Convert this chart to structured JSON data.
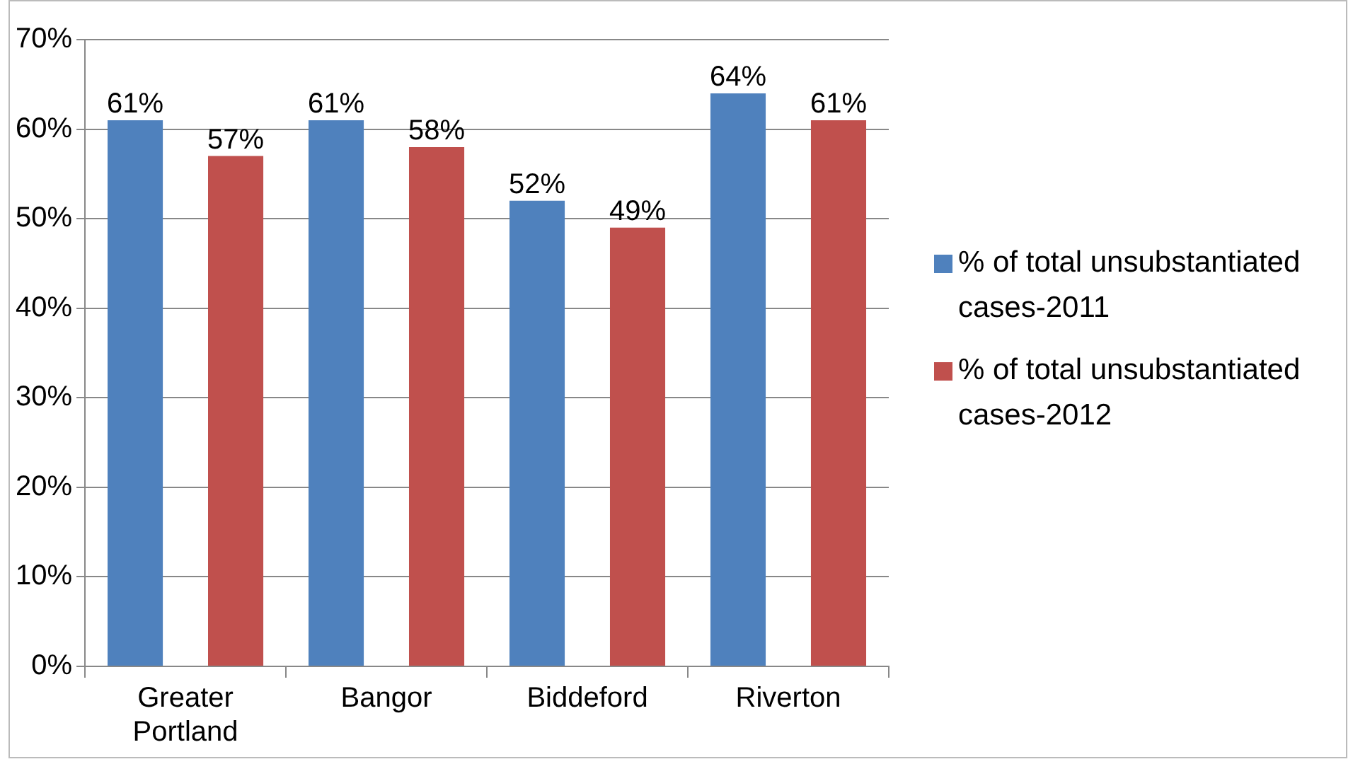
{
  "chart_data": {
    "type": "bar",
    "categories": [
      "Greater Portland",
      "Bangor",
      "Biddeford",
      "Riverton"
    ],
    "series": [
      {
        "name": "% of total unsubstantiated cases-2011",
        "color": "#4f81bd",
        "values": [
          61,
          61,
          52,
          64
        ],
        "value_labels": [
          "61%",
          "61%",
          "52%",
          "64%"
        ]
      },
      {
        "name": "% of total unsubstantiated cases-2012",
        "color": "#c0504d",
        "values": [
          57,
          58,
          49,
          61
        ],
        "value_labels": [
          "57%",
          "58%",
          "49%",
          "61%"
        ]
      }
    ],
    "ylim": [
      0,
      70
    ],
    "yticks": [
      {
        "value": 0,
        "label": "0%"
      },
      {
        "value": 10,
        "label": "10%"
      },
      {
        "value": 20,
        "label": "20%"
      },
      {
        "value": 30,
        "label": "30%"
      },
      {
        "value": 40,
        "label": "40%"
      },
      {
        "value": 50,
        "label": "50%"
      },
      {
        "value": 60,
        "label": "60%"
      },
      {
        "value": 70,
        "label": "70%"
      }
    ],
    "grid": "y",
    "legend": "right"
  }
}
